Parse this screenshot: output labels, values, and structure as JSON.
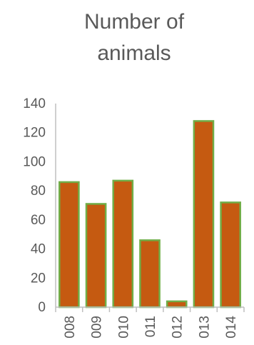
{
  "chart_data": {
    "type": "bar",
    "title_lines": [
      "Number of",
      "animals"
    ],
    "categories": [
      "008",
      "009",
      "010",
      "011",
      "012",
      "013",
      "014"
    ],
    "series": [
      {
        "values": [
          86,
          71,
          87,
          46,
          4,
          128,
          72
        ]
      }
    ],
    "xlabel": "",
    "ylabel": "",
    "ylim": [
      0,
      140
    ],
    "yticks": [
      "0",
      "20",
      "40",
      "60",
      "80",
      "100",
      "120",
      "140"
    ],
    "grid": false,
    "legend": "none",
    "colors": {
      "bar_fill": "#c55a11",
      "bar_outline": "#70ad47",
      "text": "#595959",
      "axis": "#bfbfbf"
    }
  }
}
